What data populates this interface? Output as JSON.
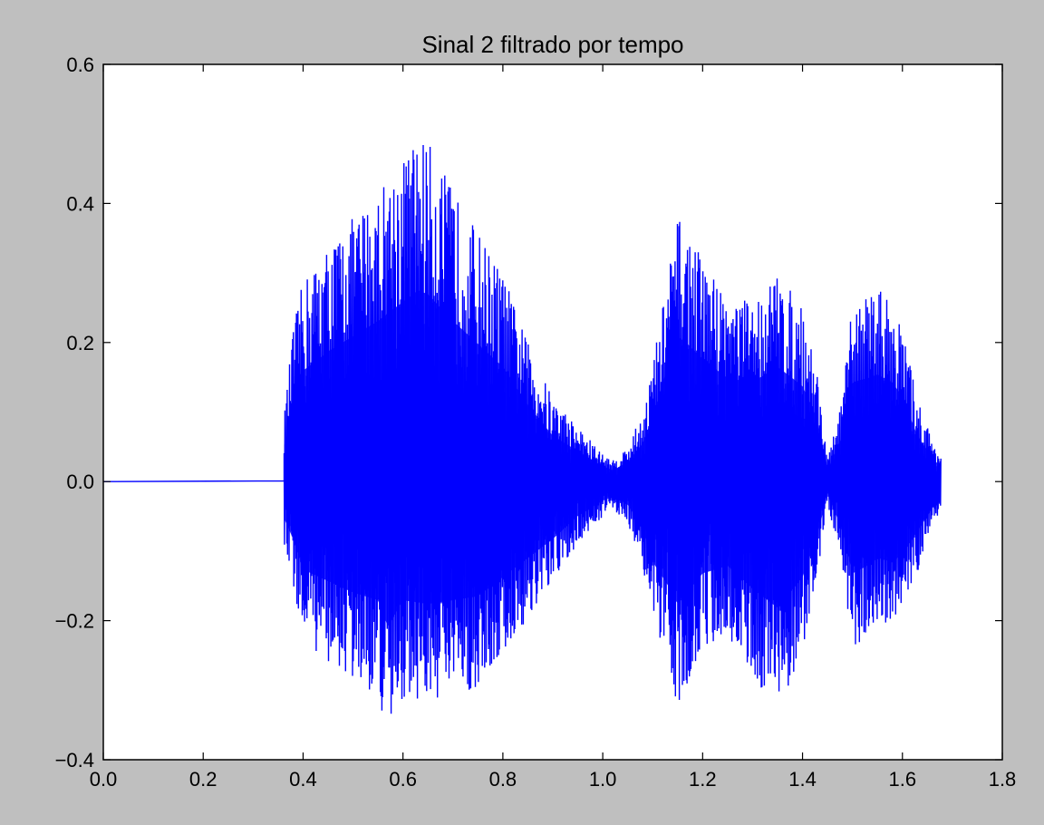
{
  "chart_data": {
    "type": "line",
    "title": "Sinal 2 filtrado por tempo",
    "xlabel": "",
    "ylabel": "",
    "xlim": [
      0.0,
      1.8
    ],
    "ylim": [
      -0.4,
      0.6
    ],
    "x_ticks": [
      0.0,
      0.2,
      0.4,
      0.6,
      0.8,
      1.0,
      1.2,
      1.4,
      1.6,
      1.8
    ],
    "x_tick_labels": [
      "0.0",
      "0.2",
      "0.4",
      "0.6",
      "0.8",
      "1.0",
      "1.2",
      "1.4",
      "1.6",
      "1.8"
    ],
    "y_ticks": [
      -0.4,
      -0.2,
      0.0,
      0.2,
      0.4,
      0.6
    ],
    "y_tick_labels": [
      "−0.4",
      "−0.2",
      "0.0",
      "0.2",
      "0.4",
      "0.6"
    ],
    "grid": false,
    "legend": "none",
    "series": [
      {
        "color": "#0000ff",
        "signal_start": 0.362,
        "signal_end": 1.677,
        "envelope_upper": {
          "x": [
            0.36,
            0.38,
            0.4,
            0.45,
            0.5,
            0.55,
            0.6,
            0.63,
            0.65,
            0.7,
            0.75,
            0.8,
            0.85,
            0.9,
            0.95,
            1.0,
            1.02,
            1.05,
            1.08,
            1.1,
            1.13,
            1.15,
            1.17,
            1.2,
            1.25,
            1.3,
            1.35,
            1.4,
            1.43,
            1.45,
            1.48,
            1.5,
            1.53,
            1.55,
            1.58,
            1.6,
            1.63,
            1.66,
            1.677
          ],
          "y": [
            0.08,
            0.22,
            0.29,
            0.34,
            0.38,
            0.42,
            0.47,
            0.5,
            0.49,
            0.42,
            0.36,
            0.3,
            0.2,
            0.12,
            0.08,
            0.04,
            0.03,
            0.05,
            0.1,
            0.17,
            0.3,
            0.38,
            0.36,
            0.32,
            0.27,
            0.26,
            0.3,
            0.25,
            0.16,
            0.03,
            0.12,
            0.26,
            0.27,
            0.28,
            0.26,
            0.22,
            0.12,
            0.06,
            0.04
          ]
        },
        "envelope_lower": {
          "x": [
            0.36,
            0.38,
            0.4,
            0.45,
            0.5,
            0.55,
            0.57,
            0.6,
            0.65,
            0.7,
            0.75,
            0.8,
            0.85,
            0.9,
            0.95,
            1.0,
            1.02,
            1.05,
            1.08,
            1.1,
            1.13,
            1.15,
            1.17,
            1.2,
            1.25,
            1.3,
            1.35,
            1.4,
            1.43,
            1.45,
            1.48,
            1.5,
            1.53,
            1.55,
            1.58,
            1.6,
            1.63,
            1.66,
            1.677
          ],
          "y": [
            -0.09,
            -0.15,
            -0.23,
            -0.26,
            -0.29,
            -0.31,
            -0.38,
            -0.31,
            -0.32,
            -0.31,
            -0.3,
            -0.25,
            -0.2,
            -0.15,
            -0.09,
            -0.05,
            -0.04,
            -0.06,
            -0.12,
            -0.21,
            -0.27,
            -0.32,
            -0.29,
            -0.24,
            -0.22,
            -0.28,
            -0.33,
            -0.25,
            -0.14,
            -0.03,
            -0.13,
            -0.24,
            -0.22,
            -0.2,
            -0.21,
            -0.19,
            -0.13,
            -0.07,
            -0.04
          ]
        }
      }
    ]
  }
}
